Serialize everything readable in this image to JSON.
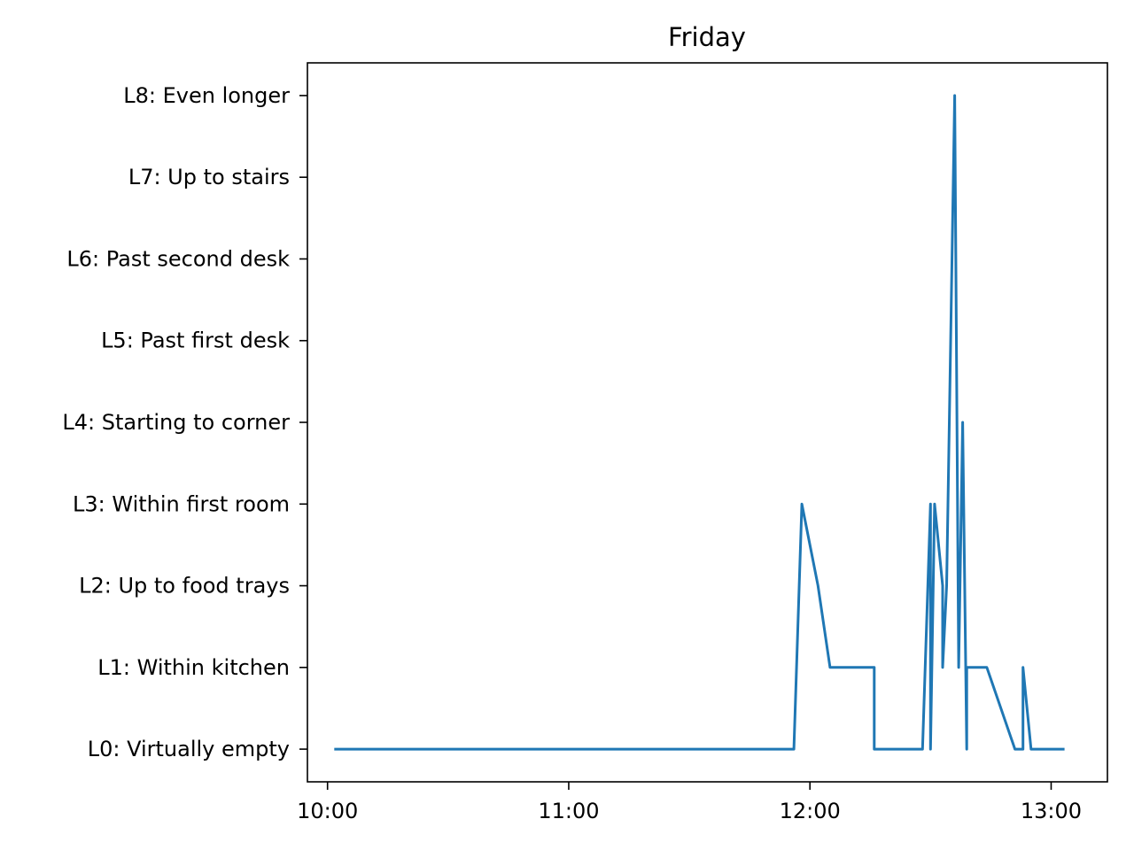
{
  "chart_data": {
    "type": "line",
    "title": "Friday",
    "xlabel": "",
    "ylabel": "",
    "x_ticks": [
      "10:00",
      "11:00",
      "12:00",
      "13:00"
    ],
    "y_categories": [
      "L0: Virtually empty",
      "L1: Within kitchen",
      "L2: Up to food trays",
      "L3: Within first room",
      "L4: Starting to corner",
      "L5: Past first desk",
      "L6: Past second desk",
      "L7: Up to stairs",
      "L8: Even longer"
    ],
    "xlim": [
      "09:55",
      "13:14"
    ],
    "ylim": [
      -0.4,
      8.4
    ],
    "grid": false,
    "series": [
      {
        "color": "#1f77b4",
        "points": [
          {
            "x": "10:02",
            "y": 0
          },
          {
            "x": "11:56",
            "y": 0
          },
          {
            "x": "11:58",
            "y": 3
          },
          {
            "x": "12:02",
            "y": 2
          },
          {
            "x": "12:05",
            "y": 1
          },
          {
            "x": "12:16",
            "y": 1
          },
          {
            "x": "12:16",
            "y": 0
          },
          {
            "x": "12:28",
            "y": 0
          },
          {
            "x": "12:30",
            "y": 3
          },
          {
            "x": "12:30",
            "y": 0
          },
          {
            "x": "12:31",
            "y": 3
          },
          {
            "x": "12:33",
            "y": 2
          },
          {
            "x": "12:33",
            "y": 1
          },
          {
            "x": "12:34",
            "y": 2
          },
          {
            "x": "12:36",
            "y": 8
          },
          {
            "x": "12:37",
            "y": 1
          },
          {
            "x": "12:38",
            "y": 4
          },
          {
            "x": "12:39",
            "y": 0
          },
          {
            "x": "12:39",
            "y": 1
          },
          {
            "x": "12:44",
            "y": 1
          },
          {
            "x": "12:51",
            "y": 0
          },
          {
            "x": "12:53",
            "y": 0
          },
          {
            "x": "12:53",
            "y": 1
          },
          {
            "x": "12:55",
            "y": 0
          },
          {
            "x": "13:03",
            "y": 0
          }
        ]
      }
    ]
  }
}
